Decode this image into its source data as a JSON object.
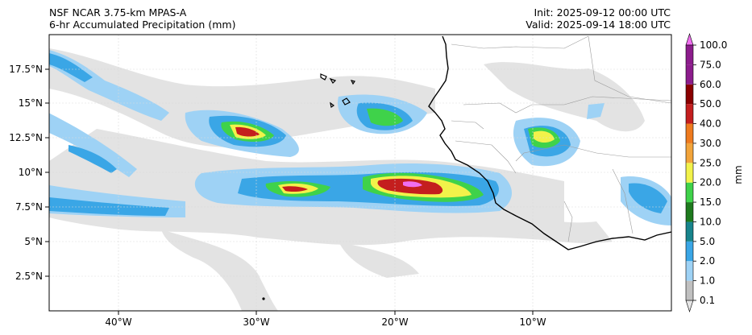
{
  "header": {
    "model_line": "NSF NCAR 3.75-km MPAS-A",
    "field_line": "6-hr Accumulated Precipitation (mm)",
    "init_line": "Init: 2025-09-12 00:00 UTC",
    "valid_line": "Valid: 2025-09-14 18:00 UTC"
  },
  "axes": {
    "lat_labels": [
      "17.5°N",
      "15°N",
      "12.5°N",
      "10°N",
      "7.5°N",
      "5°N",
      "2.5°N"
    ],
    "lon_labels": [
      "40°W",
      "30°W",
      "20°W",
      "10°W"
    ],
    "lat_values": [
      17.5,
      15,
      12.5,
      10,
      7.5,
      5,
      2.5
    ],
    "lon_values": [
      -40,
      -30,
      -20,
      -10
    ],
    "lat_range": [
      0,
      20
    ],
    "lon_range": [
      -45,
      0
    ]
  },
  "colorbar": {
    "unit_label": "mm",
    "levels": [
      "0.1",
      "1.0",
      "2.0",
      "5.0",
      "10.0",
      "15.0",
      "20.0",
      "25.0",
      "30.0",
      "40.0",
      "50.0",
      "60.0",
      "75.0",
      "100.0"
    ],
    "colors": [
      "#e6e6e6",
      "#c0c0c0",
      "#9ed2f5",
      "#3aa6e6",
      "#18848c",
      "#1e7a1e",
      "#3fd24a",
      "#f2f24a",
      "#f2a43a",
      "#ee7a1e",
      "#c41e1e",
      "#8a0000",
      "#8c1c8c",
      "#f06ef0"
    ]
  }
}
